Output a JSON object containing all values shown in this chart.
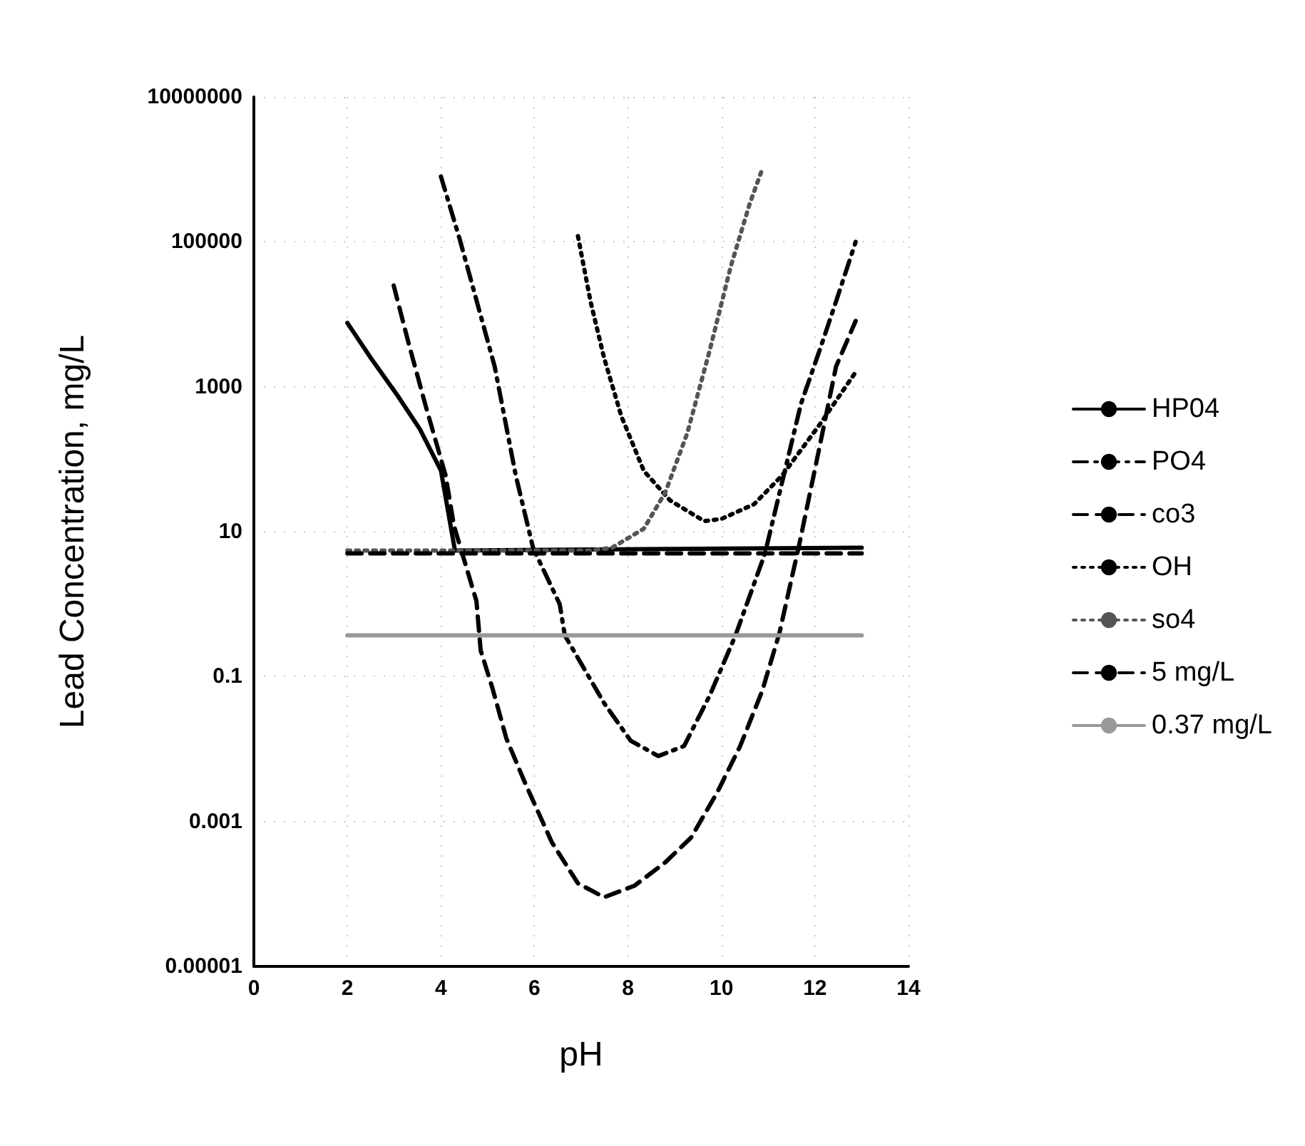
{
  "chart_data": {
    "type": "line",
    "xlabel": "pH",
    "ylabel": "Lead Concentration, mg/L",
    "log": "y",
    "grid": true,
    "legend": "right",
    "marker": "none",
    "xlim": [
      0,
      14
    ],
    "xticks": [
      0,
      2,
      4,
      6,
      8,
      10,
      12,
      14
    ],
    "ylim": [
      1e-05,
      10000000
    ],
    "yticks": [
      {
        "value": 1e-05,
        "label": "0.00001"
      },
      0.001,
      0.1,
      10,
      1000,
      100000,
      10000000
    ],
    "series": [
      {
        "name": "HP04",
        "color": "#000000",
        "line_style": "solid",
        "x": [
          2,
          2.5,
          3.07,
          3.55,
          4.0,
          4.3,
          13
        ],
        "values": [
          7600,
          2500,
          760,
          260,
          70,
          5.5,
          6
        ]
      },
      {
        "name": "PO4",
        "color": "#000000",
        "line_style": "dashdot",
        "x": [
          4.0,
          4.4,
          5.15,
          5.6,
          5.97,
          6.54,
          6.65,
          7.5,
          8.06,
          8.65,
          9.2,
          9.75,
          10.3,
          10.93,
          11.7,
          12.1,
          12.45,
          12.87
        ],
        "values": [
          800000,
          110000,
          1900,
          60,
          6,
          1,
          0.37,
          0.042,
          0.013,
          0.008,
          0.011,
          0.055,
          0.37,
          5,
          580,
          3200,
          15000,
          100000
        ]
      },
      {
        "name": "co3",
        "color": "#000000",
        "line_style": "dashed",
        "x": [
          2.99,
          3.3,
          3.69,
          4.1,
          4.28,
          4.76,
          4.85,
          5.1,
          5.4,
          5.8,
          6.37,
          6.93,
          7.49,
          8.14,
          8.79,
          9.35,
          9.92,
          10.4,
          10.87,
          11.24,
          11.66,
          12.08,
          12.45,
          12.87
        ],
        "values": [
          25000,
          4200,
          500,
          60,
          12,
          1.1,
          0.23,
          0.07,
          0.014,
          0.0034,
          0.00052,
          0.00014,
          9e-05,
          0.00013,
          0.00027,
          0.0006,
          0.0026,
          0.011,
          0.063,
          0.4,
          6.5,
          130,
          1900,
          8100
        ]
      },
      {
        "name": "OH",
        "color": "#000000",
        "line_style": "dotted",
        "x": [
          6.93,
          7.2,
          7.49,
          7.86,
          8.34,
          8.9,
          9.63,
          10.0,
          10.7,
          11.3,
          12.1,
          12.9
        ],
        "values": [
          120000,
          15000,
          2500,
          390,
          69,
          27,
          14,
          15,
          24,
          60,
          300,
          1700
        ]
      },
      {
        "name": "so4",
        "color": "#555555",
        "line_style": "dotted",
        "x": [
          2,
          7.2,
          7.66,
          8.34,
          8.8,
          9.27,
          9.75,
          10.2,
          10.6,
          10.87
        ],
        "values": [
          5.5,
          5.5,
          6,
          11,
          35,
          230,
          3200,
          46000,
          330000,
          1000000
        ]
      },
      {
        "name": "5 mg/L",
        "color": "#000000",
        "line_style": "dashed",
        "x": [
          2,
          13
        ],
        "values": [
          5,
          5
        ]
      },
      {
        "name": "0.37 mg/L",
        "color": "#999999",
        "line_style": "solid",
        "x": [
          2,
          13
        ],
        "values": [
          0.37,
          0.37
        ]
      }
    ]
  }
}
